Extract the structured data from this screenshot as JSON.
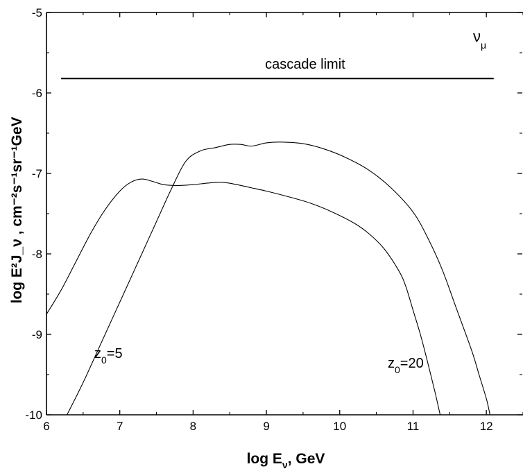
{
  "chart_data": {
    "type": "line",
    "x_range": [
      6,
      12.5
    ],
    "y_range": [
      -10,
      -5
    ],
    "x_ticks": [
      6,
      7,
      8,
      9,
      10,
      11,
      12
    ],
    "y_ticks": [
      -10,
      -9,
      -8,
      -7,
      -6,
      -5
    ],
    "xlabel": {
      "main": "log E",
      "sub": "ν",
      "unit": ",  GeV"
    },
    "ylabel": "log E²J_ν ,   cm⁻²s⁻¹sr⁻¹GeV",
    "grid": false,
    "annotations": {
      "cascade_limit": {
        "text": "cascade limit",
        "x1": 6.2,
        "x2": 12.1,
        "y": -5.82
      },
      "nu_mu": {
        "main": "ν",
        "sub": "μ"
      },
      "z5": {
        "main": "z",
        "sub": "0",
        "rest": "=5"
      },
      "z20": {
        "main": "z",
        "sub": "0",
        "rest": "=20"
      }
    },
    "series": [
      {
        "label": "z0=5",
        "x": [
          6.0,
          6.2,
          6.4,
          6.6,
          6.8,
          7.0,
          7.15,
          7.3,
          7.45,
          7.6,
          7.8,
          8.0,
          8.2,
          8.4,
          8.6,
          8.8,
          9.0,
          9.3,
          9.6,
          9.9,
          10.2,
          10.4,
          10.6,
          10.8,
          10.9,
          11.0,
          11.1,
          11.2,
          11.3,
          11.37
        ],
        "y": [
          -8.75,
          -8.45,
          -8.1,
          -7.75,
          -7.45,
          -7.22,
          -7.11,
          -7.07,
          -7.1,
          -7.14,
          -7.15,
          -7.14,
          -7.12,
          -7.11,
          -7.14,
          -7.18,
          -7.22,
          -7.29,
          -7.37,
          -7.48,
          -7.62,
          -7.75,
          -7.93,
          -8.2,
          -8.4,
          -8.7,
          -9.0,
          -9.35,
          -9.72,
          -10.0
        ]
      },
      {
        "label": "z0=20",
        "x": [
          6.28,
          6.5,
          6.7,
          6.9,
          7.1,
          7.3,
          7.5,
          7.7,
          7.9,
          8.1,
          8.3,
          8.5,
          8.65,
          8.8,
          9.0,
          9.2,
          9.5,
          9.8,
          10.1,
          10.4,
          10.7,
          11.0,
          11.2,
          11.4,
          11.6,
          11.8,
          11.9,
          12.0,
          12.05
        ],
        "y": [
          -10.0,
          -9.6,
          -9.2,
          -8.8,
          -8.4,
          -8.0,
          -7.6,
          -7.2,
          -6.85,
          -6.72,
          -6.68,
          -6.64,
          -6.64,
          -6.66,
          -6.62,
          -6.61,
          -6.63,
          -6.7,
          -6.81,
          -6.96,
          -7.18,
          -7.48,
          -7.8,
          -8.2,
          -8.7,
          -9.2,
          -9.5,
          -9.8,
          -10.0
        ]
      }
    ]
  }
}
